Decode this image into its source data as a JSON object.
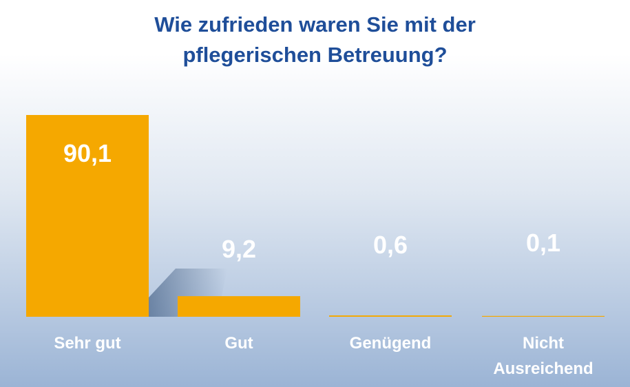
{
  "title": {
    "line1": "Wie zufrieden waren Sie mit der",
    "line2": "pflegerischen Betreuung?"
  },
  "chart_data": {
    "type": "bar",
    "title": "Wie zufrieden waren Sie mit der pflegerischen Betreuung?",
    "categories": [
      "Sehr gut",
      "Gut",
      "Genügend",
      "Nicht Ausreichend"
    ],
    "values": [
      90.1,
      9.2,
      0.6,
      0.1
    ],
    "value_labels": [
      "90,1",
      "9,2",
      "0,6",
      "0,1"
    ],
    "category_label_lines": [
      [
        "Sehr gut"
      ],
      [
        "Gut"
      ],
      [
        "Genügend"
      ],
      [
        "Nicht",
        "Ausreichend"
      ]
    ],
    "ylim": [
      0,
      90.1
    ],
    "xlabel": "",
    "ylabel": "",
    "grid": false,
    "legend": "none",
    "colors": {
      "bar": "#f5a800",
      "label": "#ffffff",
      "title": "#1f4e99"
    }
  }
}
